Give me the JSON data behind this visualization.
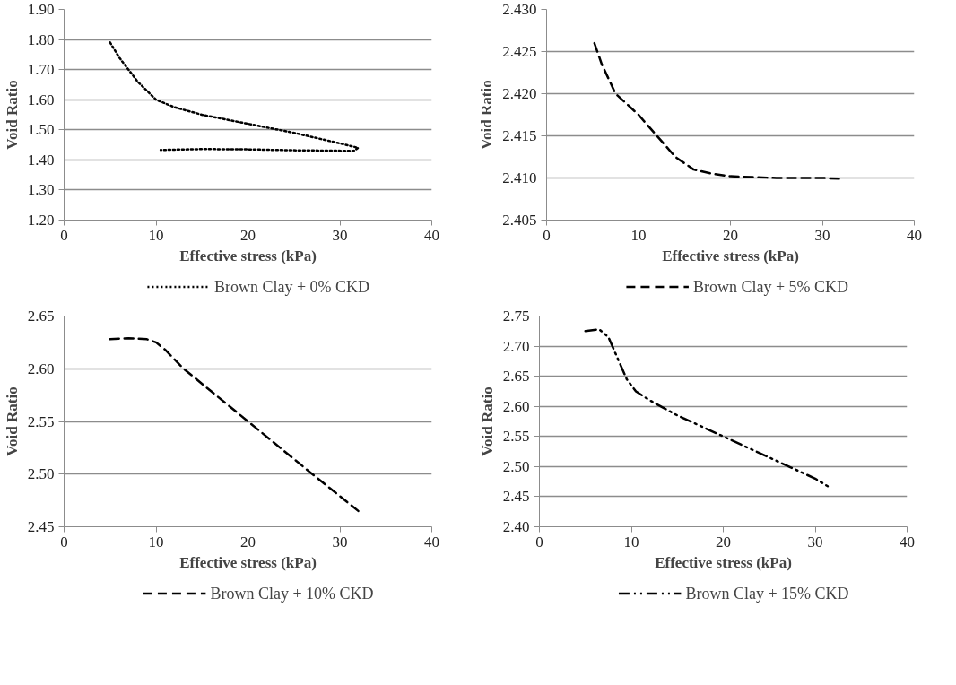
{
  "chart_data": [
    {
      "type": "line",
      "xlabel": "Effective stress (kPa)",
      "ylabel": "Void Ratio",
      "xlim": [
        0,
        40
      ],
      "xticks": [
        0,
        10,
        20,
        30,
        40
      ],
      "ylim": [
        1.2,
        1.9
      ],
      "yticks": [
        {
          "value": 1.2,
          "label": "1.20"
        },
        {
          "value": 1.3,
          "label": "1.30"
        },
        {
          "value": 1.4,
          "label": "1.40"
        },
        {
          "value": 1.5,
          "label": "1.50"
        },
        {
          "value": 1.6,
          "label": "1.60"
        },
        {
          "value": 1.7,
          "label": "1.70"
        },
        {
          "value": 1.8,
          "label": "1.80"
        },
        {
          "value": 1.9,
          "label": "1.90"
        }
      ],
      "grid": "y",
      "legend": "bottom",
      "line_style": "dotted",
      "series": [
        {
          "name": "Brown Clay + 0% CKD",
          "color": "#000000",
          "x": [
            5,
            6,
            7,
            8,
            10,
            12,
            15,
            20,
            25,
            30,
            32,
            31.5,
            25,
            20,
            15,
            10.5
          ],
          "values": [
            1.79,
            1.74,
            1.7,
            1.66,
            1.6,
            1.575,
            1.55,
            1.52,
            1.49,
            1.455,
            1.44,
            1.43,
            1.432,
            1.435,
            1.436,
            1.433
          ]
        }
      ]
    },
    {
      "type": "line",
      "xlabel": "Effective stress (kPa)",
      "ylabel": "Void Ratio",
      "xlim": [
        0,
        40
      ],
      "xticks": [
        0,
        10,
        20,
        30,
        40
      ],
      "ylim": [
        2.405,
        2.43
      ],
      "yticks": [
        {
          "value": 2.405,
          "label": "2.405"
        },
        {
          "value": 2.41,
          "label": "2.410"
        },
        {
          "value": 2.415,
          "label": "2.415"
        },
        {
          "value": 2.42,
          "label": "2.420"
        },
        {
          "value": 2.425,
          "label": "2.425"
        },
        {
          "value": 2.43,
          "label": "2.430"
        }
      ],
      "grid": "y",
      "legend": "bottom",
      "line_style": "dashed",
      "series": [
        {
          "name": "Brown Clay + 5% CKD",
          "color": "#000000",
          "x": [
            5.2,
            6,
            7.5,
            10,
            12,
            14,
            16,
            18,
            20,
            25,
            30,
            32
          ],
          "values": [
            2.426,
            2.4235,
            2.42,
            2.4175,
            2.415,
            2.4125,
            2.411,
            2.4105,
            2.4102,
            2.41,
            2.41,
            2.4099
          ]
        }
      ]
    },
    {
      "type": "line",
      "xlabel": "Effective stress (kPa)",
      "ylabel": "Void Ratio",
      "xlim": [
        0,
        40
      ],
      "xticks": [
        0,
        10,
        20,
        30,
        40
      ],
      "ylim": [
        2.45,
        2.65
      ],
      "yticks": [
        {
          "value": 2.45,
          "label": "2.45"
        },
        {
          "value": 2.5,
          "label": "2.50"
        },
        {
          "value": 2.55,
          "label": "2.55"
        },
        {
          "value": 2.6,
          "label": "2.60"
        },
        {
          "value": 2.65,
          "label": "2.65"
        }
      ],
      "grid": "y",
      "legend": "bottom",
      "line_style": "dashed",
      "series": [
        {
          "name": "Brown Clay + 10% CKD",
          "color": "#000000",
          "x": [
            5,
            7,
            9,
            10,
            11,
            13,
            20,
            27,
            32
          ],
          "values": [
            2.628,
            2.629,
            2.628,
            2.625,
            2.618,
            2.6,
            2.55,
            2.5,
            2.465
          ]
        }
      ]
    },
    {
      "type": "line",
      "xlabel": "Effective stress (kPa)",
      "ylabel": "Void Ratio",
      "xlim": [
        0,
        40
      ],
      "xticks": [
        0,
        10,
        20,
        30,
        40
      ],
      "ylim": [
        2.4,
        2.75
      ],
      "yticks": [
        {
          "value": 2.4,
          "label": "2.40"
        },
        {
          "value": 2.45,
          "label": "2.45"
        },
        {
          "value": 2.5,
          "label": "2.50"
        },
        {
          "value": 2.55,
          "label": "2.55"
        },
        {
          "value": 2.6,
          "label": "2.60"
        },
        {
          "value": 2.65,
          "label": "2.65"
        },
        {
          "value": 2.7,
          "label": "2.70"
        },
        {
          "value": 2.75,
          "label": "2.75"
        }
      ],
      "grid": "y",
      "legend": "bottom",
      "line_style": "dashdot",
      "series": [
        {
          "name": "Brown Clay + 15% CKD",
          "color": "#000000",
          "x": [
            5,
            6.5,
            7.5,
            8.5,
            9.5,
            10.5,
            12,
            15,
            20,
            25,
            30,
            31.5
          ],
          "values": [
            2.725,
            2.728,
            2.715,
            2.68,
            2.645,
            2.625,
            2.61,
            2.585,
            2.55,
            2.515,
            2.48,
            2.466
          ]
        }
      ]
    }
  ]
}
